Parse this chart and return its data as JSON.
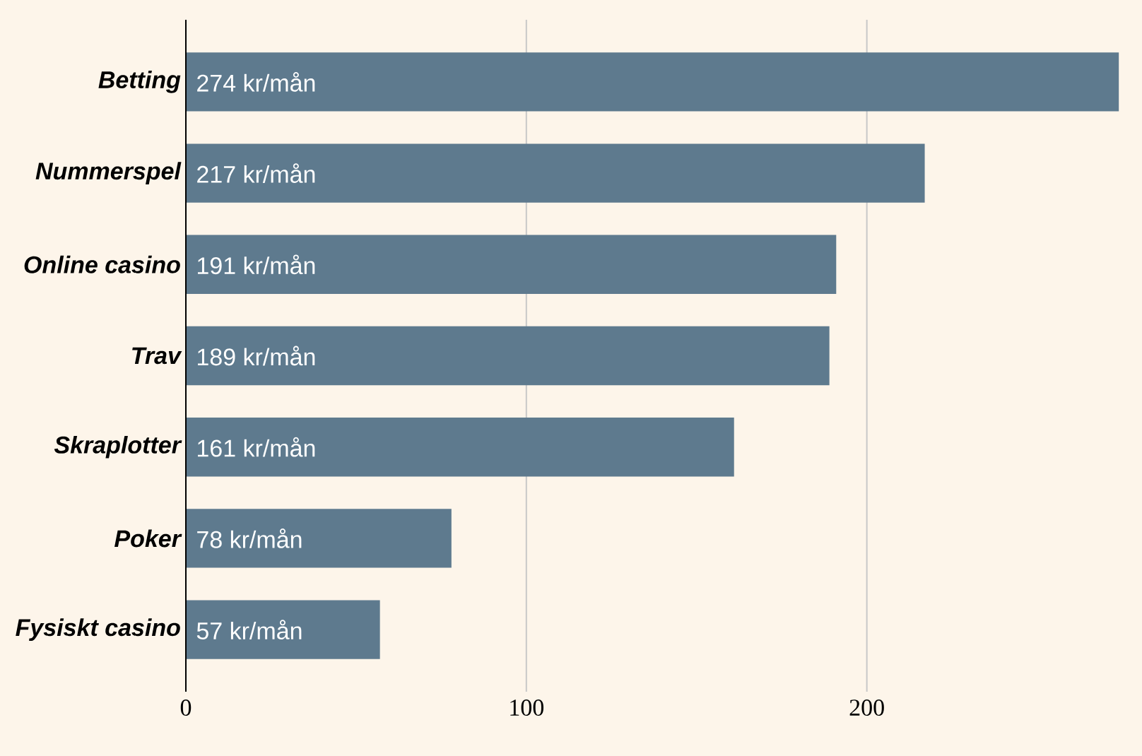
{
  "chart_data": {
    "type": "bar",
    "orientation": "horizontal",
    "categories": [
      "Betting",
      "Nummerspel",
      "Online casino",
      "Trav",
      "Skraplotter",
      "Poker",
      "Fysiskt casino"
    ],
    "values": [
      274,
      217,
      191,
      189,
      161,
      78,
      57
    ],
    "value_labels": [
      "274 kr/mån",
      "217 kr/mån",
      "191 kr/mån",
      "189 kr/mån",
      "161 kr/mån",
      "78 kr/mån",
      "57 kr/mån"
    ],
    "color": "#5e7a8e",
    "xlim": [
      0,
      275
    ],
    "xticks": [
      0,
      100,
      200
    ],
    "grid": "x"
  }
}
